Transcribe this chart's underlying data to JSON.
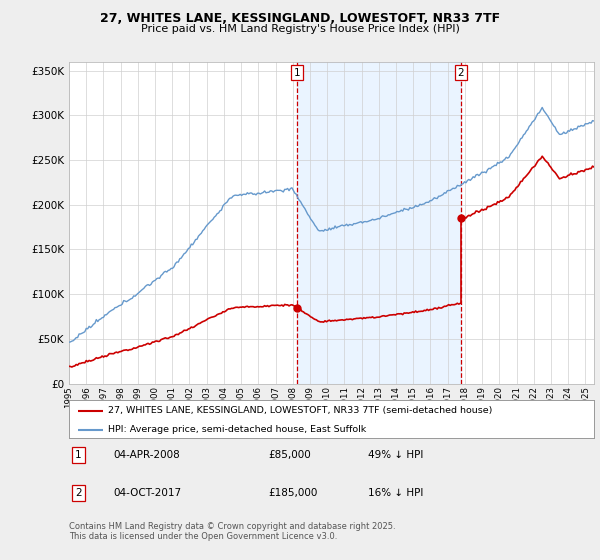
{
  "title_line1": "27, WHITES LANE, KESSINGLAND, LOWESTOFT, NR33 7TF",
  "title_line2": "Price paid vs. HM Land Registry's House Price Index (HPI)",
  "legend_label_red": "27, WHITES LANE, KESSINGLAND, LOWESTOFT, NR33 7TF (semi-detached house)",
  "legend_label_blue": "HPI: Average price, semi-detached house, East Suffolk",
  "annotation1_date": "04-APR-2008",
  "annotation1_price": "£85,000",
  "annotation1_hpi": "49% ↓ HPI",
  "annotation2_date": "04-OCT-2017",
  "annotation2_price": "£185,000",
  "annotation2_hpi": "16% ↓ HPI",
  "footnote": "Contains HM Land Registry data © Crown copyright and database right 2025.\nThis data is licensed under the Open Government Licence v3.0.",
  "red_color": "#cc0000",
  "blue_color": "#6699cc",
  "blue_fill_color": "#ddeeff",
  "vline_color": "#cc0000",
  "background_color": "#eeeeee",
  "plot_background": "#ffffff",
  "ylim": [
    0,
    360000
  ],
  "yticks": [
    0,
    50000,
    100000,
    150000,
    200000,
    250000,
    300000,
    350000
  ],
  "purchase1_year": 2008.25,
  "purchase1_value": 85000,
  "purchase2_year": 2017.75,
  "purchase2_value": 185000
}
